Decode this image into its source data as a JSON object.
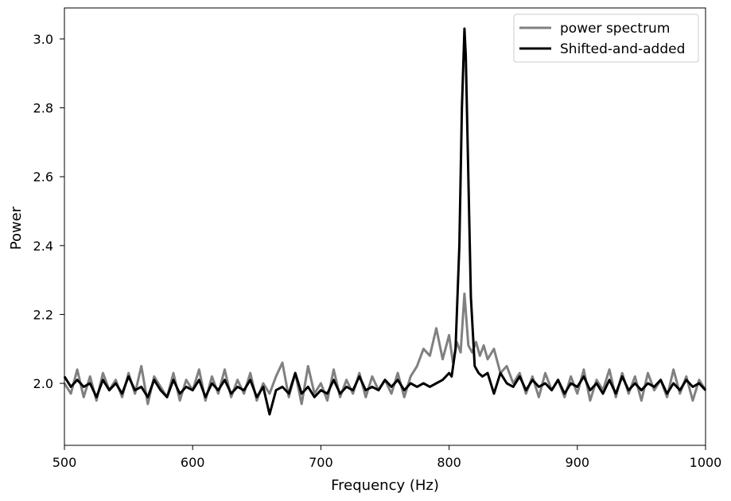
{
  "chart_data": {
    "type": "line",
    "xlabel": "Frequency (Hz)",
    "ylabel": "Power",
    "xlim": [
      500,
      1000
    ],
    "ylim": [
      1.82,
      3.09
    ],
    "xticks": [
      500,
      600,
      700,
      800,
      900,
      1000
    ],
    "yticks": [
      2.0,
      2.2,
      2.4,
      2.6,
      2.8,
      3.0
    ],
    "ytick_labels": [
      "2.0",
      "2.2",
      "2.4",
      "2.6",
      "2.8",
      "3.0"
    ],
    "grid": false,
    "legend_position": "top-right",
    "series": [
      {
        "name": "power spectrum",
        "color": "#808080",
        "x": [
          500,
          505,
          510,
          515,
          520,
          525,
          530,
          535,
          540,
          545,
          550,
          555,
          560,
          565,
          570,
          575,
          580,
          585,
          590,
          595,
          600,
          605,
          610,
          615,
          620,
          625,
          630,
          635,
          640,
          645,
          650,
          655,
          660,
          665,
          670,
          675,
          680,
          685,
          690,
          695,
          700,
          705,
          710,
          715,
          720,
          725,
          730,
          735,
          740,
          745,
          750,
          755,
          760,
          765,
          770,
          775,
          780,
          785,
          790,
          795,
          800,
          803,
          806,
          809,
          812,
          815,
          818,
          821,
          824,
          827,
          830,
          835,
          840,
          845,
          850,
          855,
          860,
          865,
          870,
          875,
          880,
          885,
          890,
          895,
          900,
          905,
          910,
          915,
          920,
          925,
          930,
          935,
          940,
          945,
          950,
          955,
          960,
          965,
          970,
          975,
          980,
          985,
          990,
          995,
          1000
        ],
        "values": [
          2.0,
          1.97,
          2.04,
          1.96,
          2.02,
          1.95,
          2.03,
          1.98,
          2.01,
          1.96,
          2.03,
          1.97,
          2.05,
          1.94,
          2.02,
          1.99,
          1.96,
          2.03,
          1.95,
          2.01,
          1.98,
          2.04,
          1.95,
          2.02,
          1.97,
          2.04,
          1.96,
          2.01,
          1.97,
          2.03,
          1.95,
          2.0,
          1.97,
          2.02,
          2.06,
          1.96,
          2.03,
          1.94,
          2.05,
          1.97,
          2.0,
          1.95,
          2.04,
          1.96,
          2.01,
          1.97,
          2.03,
          1.96,
          2.02,
          1.98,
          2.01,
          1.97,
          2.03,
          1.96,
          2.02,
          2.05,
          2.1,
          2.08,
          2.16,
          2.07,
          2.14,
          2.06,
          2.12,
          2.09,
          2.26,
          2.11,
          2.09,
          2.12,
          2.08,
          2.11,
          2.07,
          2.1,
          2.03,
          2.05,
          2.0,
          2.03,
          1.97,
          2.02,
          1.96,
          2.03,
          1.98,
          2.01,
          1.96,
          2.02,
          1.97,
          2.04,
          1.95,
          2.01,
          1.98,
          2.04,
          1.96,
          2.03,
          1.97,
          2.02,
          1.95,
          2.03,
          1.98,
          2.01,
          1.96,
          2.04,
          1.97,
          2.02,
          1.95,
          2.01,
          1.98
        ]
      },
      {
        "name": "Shifted-and-added",
        "color": "#000000",
        "x": [
          500,
          505,
          510,
          515,
          520,
          525,
          530,
          535,
          540,
          545,
          550,
          555,
          560,
          565,
          570,
          575,
          580,
          585,
          590,
          595,
          600,
          605,
          610,
          615,
          620,
          625,
          630,
          635,
          640,
          645,
          650,
          655,
          660,
          665,
          670,
          675,
          680,
          685,
          690,
          695,
          700,
          705,
          710,
          715,
          720,
          725,
          730,
          735,
          740,
          745,
          750,
          755,
          760,
          765,
          770,
          775,
          780,
          785,
          790,
          795,
          800,
          802,
          805,
          808,
          810,
          812,
          813,
          815,
          817,
          820,
          823,
          826,
          830,
          835,
          840,
          845,
          850,
          855,
          860,
          865,
          870,
          875,
          880,
          885,
          890,
          895,
          900,
          905,
          910,
          915,
          920,
          925,
          930,
          935,
          940,
          945,
          950,
          955,
          960,
          965,
          970,
          975,
          980,
          985,
          990,
          995,
          1000
        ],
        "values": [
          2.02,
          1.99,
          2.01,
          1.99,
          2.0,
          1.96,
          2.01,
          1.98,
          2.0,
          1.97,
          2.02,
          1.98,
          1.99,
          1.96,
          2.01,
          1.98,
          1.96,
          2.01,
          1.97,
          1.99,
          1.98,
          2.01,
          1.96,
          2.0,
          1.98,
          2.01,
          1.97,
          1.99,
          1.98,
          2.01,
          1.96,
          1.99,
          1.91,
          1.98,
          1.99,
          1.97,
          2.03,
          1.97,
          1.99,
          1.96,
          1.98,
          1.97,
          2.01,
          1.97,
          1.99,
          1.98,
          2.02,
          1.98,
          1.99,
          1.98,
          2.01,
          1.99,
          2.01,
          1.98,
          2.0,
          1.99,
          2.0,
          1.99,
          2.0,
          2.01,
          2.03,
          2.02,
          2.1,
          2.4,
          2.8,
          3.03,
          2.95,
          2.6,
          2.25,
          2.05,
          2.03,
          2.02,
          2.03,
          1.97,
          2.03,
          2.0,
          1.99,
          2.02,
          1.98,
          2.01,
          1.99,
          2.0,
          1.98,
          2.01,
          1.97,
          2.0,
          1.99,
          2.02,
          1.98,
          2.0,
          1.97,
          2.01,
          1.97,
          2.02,
          1.98,
          2.0,
          1.98,
          2.0,
          1.99,
          2.01,
          1.97,
          2.0,
          1.98,
          2.01,
          1.99,
          2.0,
          1.98
        ]
      }
    ]
  }
}
